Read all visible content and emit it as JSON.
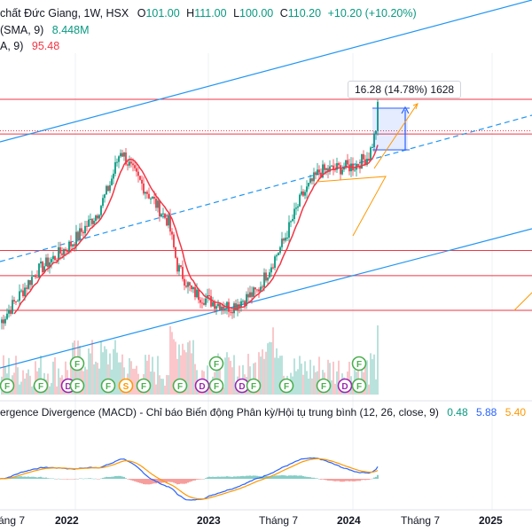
{
  "header": {
    "symbol_line_prefix": "chất Đức Giang, 1W, HSX",
    "open_label": "O",
    "open": "101.00",
    "high_label": "H",
    "high": "111.00",
    "low_label": "L",
    "low": "100.00",
    "close_label": "C",
    "close": "110.20",
    "change": "+10.20 (+10.20%)",
    "vol_label": "(SMA, 9)",
    "vol_value": "8.448M",
    "ma_label": "A, 9)",
    "ma_value": "95.48"
  },
  "measure": {
    "text": "16.28 (14.78%) 1628"
  },
  "macd": {
    "title": "ergence Divergence (MACD) - Chỉ báo Biến động Phân kỳ/Hội tụ trung bình (12, 26, close, 9)",
    "v1": "0.48",
    "v2": "5.88",
    "v3": "5.40"
  },
  "x_axis": [
    {
      "label": "áng 7",
      "bold": false
    },
    {
      "label": "2022",
      "bold": true
    },
    {
      "label": "2023",
      "bold": true
    },
    {
      "label": "Tháng 7",
      "bold": false
    },
    {
      "label": "2024",
      "bold": true
    },
    {
      "label": "Tháng 7",
      "bold": false
    },
    {
      "label": "2025",
      "bold": true
    }
  ],
  "colors": {
    "up": "#089981",
    "down": "#f23645",
    "ma": "#f23645",
    "channel": "#2196f3",
    "hline": "#f23645",
    "triangle": "#ff9800",
    "macd": "#2962ff",
    "signal": "#ff9800",
    "measure": "#2962ff"
  },
  "chart_data": {
    "type": "candlestick",
    "timeframe": "1W",
    "price_key_points": [
      {
        "t": 0,
        "p": 40
      },
      {
        "t": 20,
        "p": 56
      },
      {
        "t": 40,
        "p": 65
      },
      {
        "t": 55,
        "p": 75
      },
      {
        "t": 62,
        "p": 84
      },
      {
        "t": 68,
        "p": 95
      },
      {
        "t": 75,
        "p": 88
      },
      {
        "t": 85,
        "p": 80
      },
      {
        "t": 95,
        "p": 72
      },
      {
        "t": 100,
        "p": 58
      },
      {
        "t": 108,
        "p": 50
      },
      {
        "t": 118,
        "p": 47
      },
      {
        "t": 130,
        "p": 45
      },
      {
        "t": 145,
        "p": 50
      },
      {
        "t": 160,
        "p": 66
      },
      {
        "t": 170,
        "p": 80
      },
      {
        "t": 180,
        "p": 88
      },
      {
        "t": 190,
        "p": 89
      },
      {
        "t": 200,
        "p": 90
      },
      {
        "t": 208,
        "p": 93
      },
      {
        "t": 212,
        "p": 101
      },
      {
        "t": 213,
        "p": 110.2
      }
    ],
    "horizontal_levels": [
      111,
      100,
      63,
      55,
      44
    ],
    "volume_sma": 8.448,
    "ma9": 95.48,
    "macd": {
      "macd": 5.88,
      "signal": 5.4,
      "histogram": 0.48
    },
    "measure": {
      "change": 16.28,
      "percent": 14.78,
      "ticks": 1628
    }
  }
}
